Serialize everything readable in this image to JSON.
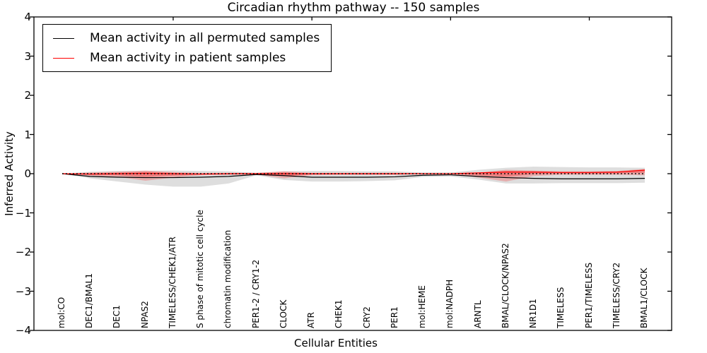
{
  "title": "Circadian rhythm pathway -- 150 samples",
  "xlabel": "Cellular Entities",
  "ylabel": "Inferred Activity",
  "legend": {
    "items": [
      {
        "label": "Mean activity in all permuted samples",
        "color": "#000000"
      },
      {
        "label": "Mean activity in patient samples",
        "color": "#ff0000"
      }
    ]
  },
  "y_axis": {
    "tick_labels": [
      "4",
      "3",
      "2",
      "1",
      "0",
      "−1",
      "−2",
      "−3",
      "−4"
    ],
    "tick_values": [
      4,
      3,
      2,
      1,
      0,
      -1,
      -2,
      -3,
      -4
    ]
  },
  "chart_data": {
    "type": "line",
    "title": "Circadian rhythm pathway -- 150 samples",
    "xlabel": "Cellular Entities",
    "ylabel": "Inferred Activity",
    "ylim": [
      -4,
      4
    ],
    "grid": false,
    "legend_position": "upper left",
    "zero_reference_line": 0,
    "categories": [
      "mol:CO",
      "DEC1/BMAL1",
      "DEC1",
      "NPAS2",
      "TIMELESS/CHEK1/ATR",
      "S phase of mitotic cell cycle",
      "chromatin modification",
      "PER1-2 / CRY1-2",
      "CLOCK",
      "ATR",
      "CHEK1",
      "CRY2",
      "PER1",
      "mol:HEME",
      "mol:NADPH",
      "ARNTL",
      "BMAL/CLOCK/NPAS2",
      "NR1D1",
      "TIMELESS",
      "PER1/TIMELESS",
      "TIMELESS/CRY2",
      "BMAL1/CLOCK"
    ],
    "series": [
      {
        "name": "Mean activity in all permuted samples",
        "color": "#000000",
        "values": [
          0.0,
          -0.07,
          -0.09,
          -0.1,
          -0.1,
          -0.09,
          -0.07,
          -0.02,
          -0.05,
          -0.09,
          -0.09,
          -0.09,
          -0.08,
          -0.04,
          -0.03,
          -0.07,
          -0.1,
          -0.12,
          -0.13,
          -0.13,
          -0.13,
          -0.12
        ]
      },
      {
        "name": "Mean activity in patient samples",
        "color": "#ff0000",
        "values": [
          0.0,
          -0.01,
          0.0,
          0.01,
          0.0,
          -0.01,
          0.0,
          0.0,
          0.0,
          0.0,
          0.0,
          0.0,
          0.0,
          0.0,
          0.0,
          0.02,
          0.04,
          0.04,
          0.03,
          0.03,
          0.04,
          0.09
        ]
      }
    ],
    "bands": [
      {
        "name": "permuted-samples-range",
        "color": "#000000",
        "opacity": 0.13,
        "upper": [
          0.0,
          0.05,
          0.07,
          0.07,
          0.08,
          0.07,
          0.06,
          0.02,
          0.06,
          0.07,
          0.07,
          0.06,
          0.06,
          0.03,
          0.03,
          0.1,
          0.15,
          0.18,
          0.17,
          0.16,
          0.16,
          0.15
        ],
        "lower": [
          0.0,
          -0.12,
          -0.2,
          -0.28,
          -0.33,
          -0.33,
          -0.25,
          -0.04,
          -0.16,
          -0.2,
          -0.2,
          -0.19,
          -0.17,
          -0.08,
          -0.07,
          -0.15,
          -0.25,
          -0.25,
          -0.24,
          -0.24,
          -0.24,
          -0.23
        ]
      },
      {
        "name": "patient-samples-range",
        "color": "#ff0000",
        "opacity": 0.22,
        "upper": [
          0.0,
          0.03,
          0.05,
          0.08,
          0.04,
          0.02,
          0.02,
          0.02,
          0.06,
          0.02,
          0.02,
          0.02,
          0.02,
          0.01,
          0.01,
          0.03,
          0.1,
          0.08,
          0.06,
          0.06,
          0.07,
          0.12
        ],
        "lower": [
          0.0,
          -0.05,
          -0.08,
          -0.18,
          -0.1,
          -0.04,
          -0.03,
          -0.02,
          -0.12,
          -0.04,
          -0.03,
          -0.03,
          -0.03,
          -0.01,
          -0.01,
          -0.1,
          -0.2,
          -0.06,
          -0.03,
          -0.03,
          -0.03,
          -0.04
        ]
      }
    ]
  }
}
